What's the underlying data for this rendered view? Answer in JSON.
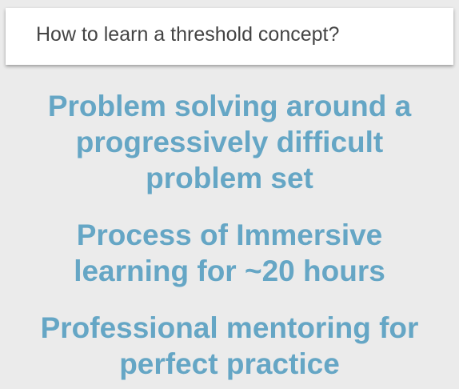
{
  "slide": {
    "title": "How to learn a threshold concept?",
    "points": [
      "Problem solving around a progressively difficult problem set",
      "Process of Immersive learning for ~20 hours",
      "Professional mentoring for perfect practice"
    ]
  },
  "colors": {
    "background": "#ebebeb",
    "title_card": "#ffffff",
    "title_text": "#444444",
    "point_text": "#65a6c5"
  }
}
